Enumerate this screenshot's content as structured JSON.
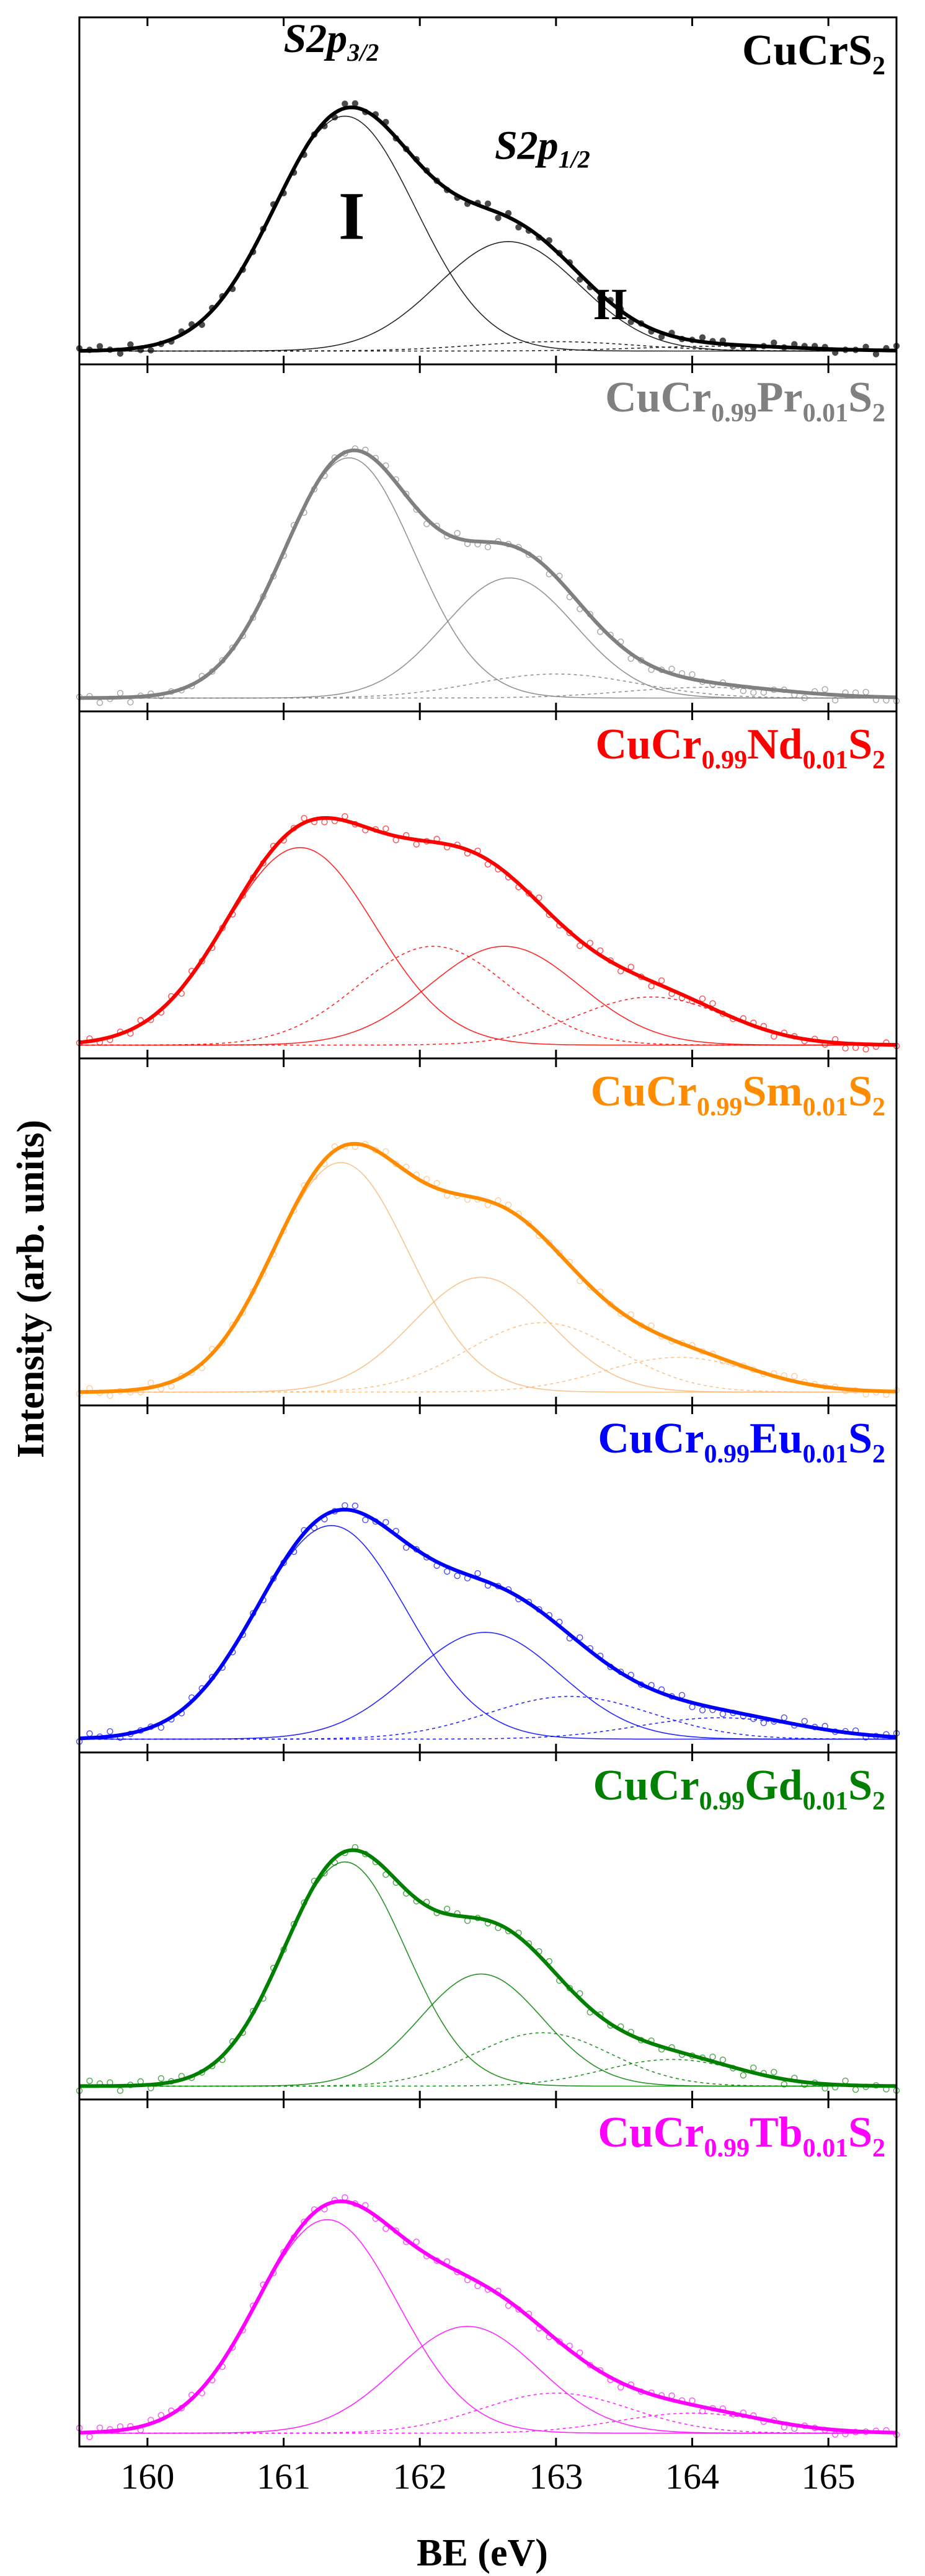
{
  "chart_data": {
    "type": "line",
    "title": "",
    "xlabel": "BE (eV)",
    "ylabel": "Intensity (arb. units)",
    "xlim": [
      159.5,
      165.5
    ],
    "x_ticks": [
      160,
      161,
      162,
      163,
      164,
      165
    ],
    "x_tick_labels": [
      "160",
      "161",
      "162",
      "163",
      "164",
      "165"
    ],
    "panels": [
      {
        "sample": {
          "base": "CuCr",
          "sub1": "",
          "dopant": "",
          "sub2": "",
          "tail": "S",
          "sub3": "2"
        },
        "color": "#000000",
        "components": [
          {
            "center": 161.45,
            "height": 0.88,
            "width": 0.52,
            "style": "solid",
            "name": "I"
          },
          {
            "center": 162.65,
            "height": 0.41,
            "width": 0.52,
            "style": "solid",
            "name": "I"
          },
          {
            "center": 163.0,
            "height": 0.035,
            "width": 0.6,
            "style": "dotted",
            "name": "II"
          },
          {
            "center": 164.2,
            "height": 0.018,
            "width": 0.6,
            "style": "dotted",
            "name": "II"
          }
        ],
        "annotations": [
          {
            "text": "S2p",
            "sub": "3/2",
            "x": 161.35,
            "y": 1.12
          },
          {
            "text": "S2p",
            "sub": "1/2",
            "x": 162.9,
            "y": 0.72
          },
          {
            "text": "I",
            "sub": "",
            "x": 161.5,
            "y": 0.42
          },
          {
            "text": "II",
            "sub": "",
            "x": 163.4,
            "y": 0.12
          }
        ]
      },
      {
        "sample": {
          "base": "CuCr",
          "sub1": "0.99",
          "dopant": "Pr",
          "sub2": "0.01",
          "tail": "S",
          "sub3": "2"
        },
        "color": "#808080",
        "components": [
          {
            "center": 161.48,
            "height": 0.9,
            "width": 0.48,
            "style": "solid",
            "name": "I"
          },
          {
            "center": 162.66,
            "height": 0.45,
            "width": 0.48,
            "style": "solid",
            "name": "I"
          },
          {
            "center": 163.0,
            "height": 0.09,
            "width": 0.6,
            "style": "dotted",
            "name": "II"
          },
          {
            "center": 164.1,
            "height": 0.04,
            "width": 0.6,
            "style": "dotted",
            "name": "II"
          }
        ],
        "annotations": []
      },
      {
        "sample": {
          "base": "CuCr",
          "sub1": "0.99",
          "dopant": "Nd",
          "sub2": "0.01",
          "tail": "S",
          "sub3": "2"
        },
        "color": "#ff0000",
        "components": [
          {
            "center": 161.12,
            "height": 0.74,
            "width": 0.55,
            "style": "solid",
            "name": "I"
          },
          {
            "center": 162.62,
            "height": 0.37,
            "width": 0.55,
            "style": "solid",
            "name": "I"
          },
          {
            "center": 162.1,
            "height": 0.37,
            "width": 0.55,
            "style": "dotted",
            "name": "II"
          },
          {
            "center": 163.7,
            "height": 0.18,
            "width": 0.55,
            "style": "dotted",
            "name": "II"
          }
        ],
        "annotations": []
      },
      {
        "sample": {
          "base": "CuCr",
          "sub1": "0.99",
          "dopant": "Sm",
          "sub2": "0.01",
          "tail": "S",
          "sub3": "2"
        },
        "color": "#ff8c00",
        "accent": "#f9b878",
        "components": [
          {
            "center": 161.42,
            "height": 0.86,
            "width": 0.5,
            "style": "solid",
            "name": "I"
          },
          {
            "center": 162.45,
            "height": 0.43,
            "width": 0.5,
            "style": "solid",
            "name": "I"
          },
          {
            "center": 162.9,
            "height": 0.26,
            "width": 0.55,
            "style": "dotted",
            "name": "II"
          },
          {
            "center": 163.9,
            "height": 0.13,
            "width": 0.55,
            "style": "dotted",
            "name": "II"
          }
        ],
        "annotations": []
      },
      {
        "sample": {
          "base": "CuCr",
          "sub1": "0.99",
          "dopant": "Eu",
          "sub2": "0.01",
          "tail": "S",
          "sub3": "2"
        },
        "color": "#0000ff",
        "components": [
          {
            "center": 161.35,
            "height": 0.8,
            "width": 0.55,
            "style": "solid",
            "name": "I"
          },
          {
            "center": 162.48,
            "height": 0.4,
            "width": 0.55,
            "style": "solid",
            "name": "I"
          },
          {
            "center": 163.1,
            "height": 0.16,
            "width": 0.6,
            "style": "dotted",
            "name": "II"
          },
          {
            "center": 164.2,
            "height": 0.08,
            "width": 0.6,
            "style": "dotted",
            "name": "II"
          }
        ],
        "annotations": []
      },
      {
        "sample": {
          "base": "CuCr",
          "sub1": "0.99",
          "dopant": "Gd",
          "sub2": "0.01",
          "tail": "S",
          "sub3": "2"
        },
        "color": "#008000",
        "components": [
          {
            "center": 161.45,
            "height": 0.84,
            "width": 0.45,
            "style": "solid",
            "name": "I"
          },
          {
            "center": 162.45,
            "height": 0.42,
            "width": 0.45,
            "style": "solid",
            "name": "I"
          },
          {
            "center": 162.9,
            "height": 0.2,
            "width": 0.5,
            "style": "dotted",
            "name": "II"
          },
          {
            "center": 163.85,
            "height": 0.1,
            "width": 0.5,
            "style": "dotted",
            "name": "II"
          }
        ],
        "annotations": []
      },
      {
        "sample": {
          "base": "CuCr",
          "sub1": "0.99",
          "dopant": "Tb",
          "sub2": "0.01",
          "tail": "S",
          "sub3": "2"
        },
        "color": "#ff00ff",
        "components": [
          {
            "center": 161.32,
            "height": 0.8,
            "width": 0.52,
            "style": "solid",
            "name": "I"
          },
          {
            "center": 162.35,
            "height": 0.4,
            "width": 0.52,
            "style": "solid",
            "name": "I"
          },
          {
            "center": 163.0,
            "height": 0.15,
            "width": 0.55,
            "style": "dotted",
            "name": "II"
          },
          {
            "center": 164.0,
            "height": 0.075,
            "width": 0.55,
            "style": "dotted",
            "name": "II"
          }
        ],
        "annotations": []
      }
    ]
  }
}
